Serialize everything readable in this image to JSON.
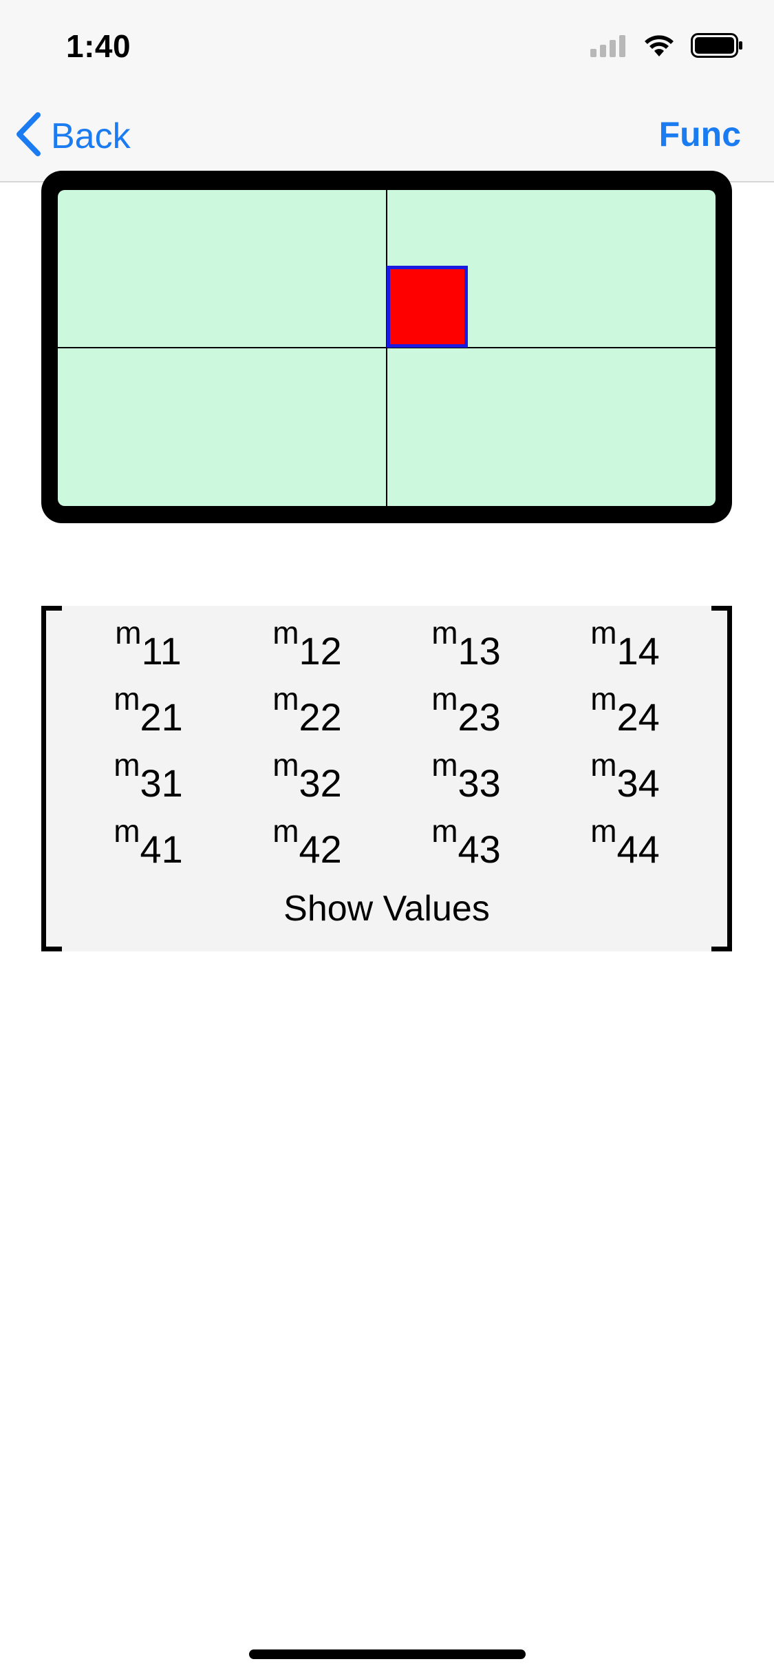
{
  "status_bar": {
    "time": "1:40"
  },
  "nav": {
    "back_label": "Back",
    "right_label": "Func",
    "accent_color": "#1a7cf0"
  },
  "canvas": {
    "background_color": "#ccf9dd",
    "square_fill": "#ff0000",
    "square_border": "#1a1ae0"
  },
  "matrix": {
    "rows": [
      [
        {
          "var": "m",
          "sub": "11"
        },
        {
          "var": "m",
          "sub": "12"
        },
        {
          "var": "m",
          "sub": "13"
        },
        {
          "var": "m",
          "sub": "14"
        }
      ],
      [
        {
          "var": "m",
          "sub": "21"
        },
        {
          "var": "m",
          "sub": "22"
        },
        {
          "var": "m",
          "sub": "23"
        },
        {
          "var": "m",
          "sub": "24"
        }
      ],
      [
        {
          "var": "m",
          "sub": "31"
        },
        {
          "var": "m",
          "sub": "32"
        },
        {
          "var": "m",
          "sub": "33"
        },
        {
          "var": "m",
          "sub": "34"
        }
      ],
      [
        {
          "var": "m",
          "sub": "41"
        },
        {
          "var": "m",
          "sub": "42"
        },
        {
          "var": "m",
          "sub": "43"
        },
        {
          "var": "m",
          "sub": "44"
        }
      ]
    ],
    "show_values_label": "Show Values"
  }
}
